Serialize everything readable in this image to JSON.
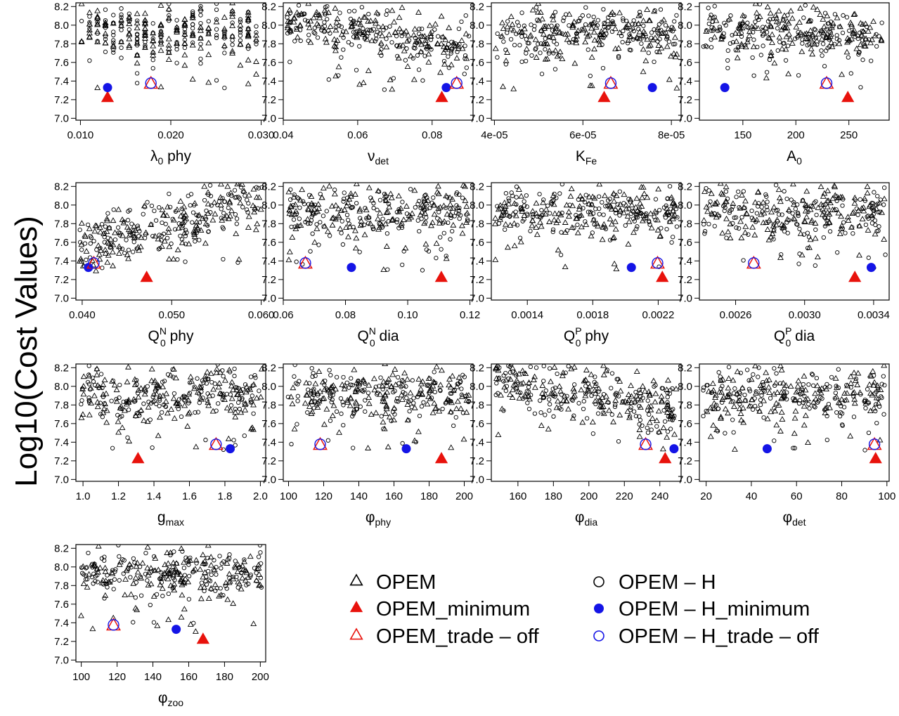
{
  "y_axis_label": "Log10(Cost Values)",
  "marker_colors": {
    "opem": "#000000",
    "minimum_red": "#e8120c",
    "minimum_blue": "#1414e6",
    "tradeoff_red": "#e8120c",
    "tradeoff_blue": "#1414e6"
  },
  "legend": [
    {
      "label": "OPEM",
      "marker": "triangle-open",
      "color": "#000000"
    },
    {
      "label": "OPEM_minimum",
      "marker": "triangle-filled",
      "color": "#e8120c"
    },
    {
      "label": "OPEM_trade – off",
      "marker": "triangle-open",
      "color": "#e8120c"
    },
    {
      "label": "OPEM – H",
      "marker": "circle-open",
      "color": "#000000"
    },
    {
      "label": "OPEM – H_minimum",
      "marker": "circle-filled",
      "color": "#1414e6"
    },
    {
      "label": "OPEM – H_trade – off",
      "marker": "circle-open",
      "color": "#1414e6"
    }
  ],
  "chart_data": [
    {
      "type": "scatter",
      "xlabel": {
        "main": "λ",
        "sub": "0",
        "sup": "",
        "tail": " phy"
      },
      "xlim": [
        0.0095,
        0.0305
      ],
      "xticks": [
        0.01,
        0.02,
        0.03
      ],
      "xtick_labels": [
        "0.010",
        "0.020",
        "0.030"
      ],
      "ylim": [
        6.98,
        8.24
      ],
      "yticks": [
        7.0,
        7.2,
        7.4,
        7.6,
        7.8,
        8.0,
        8.2
      ],
      "ytick_labels": [
        "7.0",
        "7.2",
        "7.4",
        "7.6",
        "7.8",
        "8.0",
        "8.2"
      ],
      "trend": "stripes",
      "special": {
        "opem_min": [
          0.013,
          7.22
        ],
        "opem_h_min": [
          0.013,
          7.33
        ],
        "tradeoff": [
          0.0178,
          7.37
        ]
      }
    },
    {
      "type": "scatter",
      "xlabel": {
        "main": "ν",
        "sub": "det",
        "sup": "",
        "tail": ""
      },
      "xlim": [
        0.04,
        0.091
      ],
      "xticks": [
        0.04,
        0.06,
        0.08
      ],
      "xtick_labels": [
        "0.04",
        "0.06",
        "0.08"
      ],
      "ylim": [
        6.98,
        8.24
      ],
      "yticks": [
        7.0,
        7.2,
        7.4,
        7.6,
        7.8,
        8.0,
        8.2
      ],
      "ytick_labels": [
        "7.0",
        "7.2",
        "7.4",
        "7.6",
        "7.8",
        "8.0",
        "8.2"
      ],
      "trend": "down",
      "special": {
        "opem_min": [
          0.0826,
          7.22
        ],
        "opem_h_min": [
          0.0838,
          7.33
        ],
        "tradeoff": [
          0.0866,
          7.37
        ]
      }
    },
    {
      "type": "scatter",
      "xlabel": {
        "main": "K",
        "sub": "Fe",
        "sup": "",
        "tail": ""
      },
      "xlim": [
        3.93e-05,
        8.22e-05
      ],
      "xticks": [
        4e-05,
        6e-05,
        8e-05
      ],
      "xtick_labels": [
        "4e-05",
        "6e-05",
        "8e-05"
      ],
      "ylim": [
        6.98,
        8.24
      ],
      "yticks": [
        7.0,
        7.2,
        7.4,
        7.6,
        7.8,
        8.0,
        8.2
      ],
      "ytick_labels": [
        "7.0",
        "7.2",
        "7.4",
        "7.6",
        "7.8",
        "8.0",
        "8.2"
      ],
      "trend": "flat",
      "special": {
        "opem_min": [
          6.48e-05,
          7.22
        ],
        "opem_h_min": [
          7.57e-05,
          7.33
        ],
        "tradeoff": [
          6.63e-05,
          7.37
        ]
      }
    },
    {
      "type": "scatter",
      "xlabel": {
        "main": "A",
        "sub": "0",
        "sup": "",
        "tail": ""
      },
      "xlim": [
        109,
        288
      ],
      "xticks": [
        150,
        200,
        250
      ],
      "xtick_labels": [
        "150",
        "200",
        "250"
      ],
      "ylim": [
        6.98,
        8.24
      ],
      "yticks": [
        7.0,
        7.2,
        7.4,
        7.6,
        7.8,
        8.0,
        8.2
      ],
      "ytick_labels": [
        "7.0",
        "7.2",
        "7.4",
        "7.6",
        "7.8",
        "8.0",
        "8.2"
      ],
      "trend": "flat",
      "special": {
        "opem_min": [
          249,
          7.22
        ],
        "opem_h_min": [
          133,
          7.33
        ],
        "tradeoff": [
          229,
          7.37
        ]
      }
    },
    {
      "type": "scatter",
      "xlabel": {
        "main": "Q",
        "sub": "0",
        "sup": "N",
        "tail": " phy"
      },
      "xlim": [
        0.0393,
        0.0605
      ],
      "xticks": [
        0.04,
        0.05,
        0.06
      ],
      "xtick_labels": [
        "0.040",
        "0.050",
        "0.060"
      ],
      "ylim": [
        6.98,
        8.24
      ],
      "yticks": [
        7.0,
        7.2,
        7.4,
        7.6,
        7.8,
        8.0,
        8.2
      ],
      "ytick_labels": [
        "7.0",
        "7.2",
        "7.4",
        "7.6",
        "7.8",
        "8.0",
        "8.2"
      ],
      "trend": "up",
      "special": {
        "opem_min": [
          0.0472,
          7.22
        ],
        "opem_h_min": [
          0.0407,
          7.33
        ],
        "tradeoff": [
          0.0413,
          7.37
        ]
      }
    },
    {
      "type": "scatter",
      "xlabel": {
        "main": "Q",
        "sub": "0",
        "sup": "N",
        "tail": " dia"
      },
      "xlim": [
        0.06,
        0.121
      ],
      "xticks": [
        0.06,
        0.08,
        0.1,
        0.12
      ],
      "xtick_labels": [
        "0.06",
        "0.08",
        "0.10",
        "0.12"
      ],
      "ylim": [
        6.98,
        8.24
      ],
      "yticks": [
        7.0,
        7.2,
        7.4,
        7.6,
        7.8,
        8.0,
        8.2
      ],
      "ytick_labels": [
        "7.0",
        "7.2",
        "7.4",
        "7.6",
        "7.8",
        "8.0",
        "8.2"
      ],
      "trend": "flat",
      "special": {
        "opem_min": [
          0.1108,
          7.22
        ],
        "opem_h_min": [
          0.0819,
          7.33
        ],
        "tradeoff": [
          0.0671,
          7.37
        ]
      }
    },
    {
      "type": "scatter",
      "xlabel": {
        "main": "Q",
        "sub": "0",
        "sup": "P",
        "tail": " phy"
      },
      "xlim": [
        0.00118,
        0.00234
      ],
      "xticks": [
        0.0014,
        0.0018,
        0.0022
      ],
      "xtick_labels": [
        "0.0014",
        "0.0018",
        "0.0022"
      ],
      "ylim": [
        6.98,
        8.24
      ],
      "yticks": [
        7.0,
        7.2,
        7.4,
        7.6,
        7.8,
        8.0,
        8.2
      ],
      "ytick_labels": [
        "7.0",
        "7.2",
        "7.4",
        "7.6",
        "7.8",
        "8.0",
        "8.2"
      ],
      "trend": "flat",
      "special": {
        "opem_min": [
          0.002225,
          7.22
        ],
        "opem_h_min": [
          0.002036,
          7.33
        ],
        "tradeoff": [
          0.002196,
          7.37
        ]
      }
    },
    {
      "type": "scatter",
      "xlabel": {
        "main": "Q",
        "sub": "0",
        "sup": "P",
        "tail": " dia"
      },
      "xlim": [
        0.00239,
        0.00349
      ],
      "xticks": [
        0.0026,
        0.003,
        0.0034
      ],
      "xtick_labels": [
        "0.0026",
        "0.0030",
        "0.0034"
      ],
      "ylim": [
        6.98,
        8.24
      ],
      "yticks": [
        7.0,
        7.2,
        7.4,
        7.6,
        7.8,
        8.0,
        8.2
      ],
      "ytick_labels": [
        "7.0",
        "7.2",
        "7.4",
        "7.6",
        "7.8",
        "8.0",
        "8.2"
      ],
      "trend": "flat",
      "special": {
        "opem_min": [
          0.003291,
          7.22
        ],
        "opem_h_min": [
          0.003386,
          7.33
        ],
        "tradeoff": [
          0.002705,
          7.37
        ]
      }
    },
    {
      "type": "scatter",
      "xlabel": {
        "main": "g",
        "sub": "max",
        "sup": "",
        "tail": ""
      },
      "xlim": [
        0.96,
        2.03
      ],
      "xticks": [
        1.0,
        1.2,
        1.4,
        1.6,
        1.8,
        2.0
      ],
      "xtick_labels": [
        "1.0",
        "1.2",
        "1.4",
        "1.6",
        "1.8",
        "2.0"
      ],
      "ylim": [
        6.98,
        8.24
      ],
      "yticks": [
        7.0,
        7.2,
        7.4,
        7.6,
        7.8,
        8.0,
        8.2
      ],
      "ytick_labels": [
        "7.0",
        "7.2",
        "7.4",
        "7.6",
        "7.8",
        "8.0",
        "8.2"
      ],
      "trend": "flat",
      "special": {
        "opem_min": [
          1.31,
          7.22
        ],
        "opem_h_min": [
          1.83,
          7.33
        ],
        "tradeoff": [
          1.75,
          7.37
        ]
      }
    },
    {
      "type": "scatter",
      "xlabel": {
        "main": "φ",
        "sub": "phy",
        "sup": "",
        "tail": ""
      },
      "xlim": [
        97,
        205
      ],
      "xticks": [
        100,
        120,
        140,
        160,
        180,
        200
      ],
      "xtick_labels": [
        "100",
        "120",
        "140",
        "160",
        "180",
        "200"
      ],
      "ylim": [
        6.98,
        8.24
      ],
      "yticks": [
        7.0,
        7.2,
        7.4,
        7.6,
        7.8,
        8.0,
        8.2
      ],
      "ytick_labels": [
        "7.0",
        "7.2",
        "7.4",
        "7.6",
        "7.8",
        "8.0",
        "8.2"
      ],
      "trend": "flat",
      "special": {
        "opem_min": [
          187,
          7.22
        ],
        "opem_h_min": [
          167,
          7.33
        ],
        "tradeoff": [
          118,
          7.37
        ]
      }
    },
    {
      "type": "scatter",
      "xlabel": {
        "main": "φ",
        "sub": "dia",
        "sup": "",
        "tail": ""
      },
      "xlim": [
        145,
        252
      ],
      "xticks": [
        160,
        180,
        200,
        220,
        240
      ],
      "xtick_labels": [
        "160",
        "180",
        "200",
        "220",
        "240"
      ],
      "ylim": [
        6.98,
        8.24
      ],
      "yticks": [
        7.0,
        7.2,
        7.4,
        7.6,
        7.8,
        8.0,
        8.2
      ],
      "ytick_labels": [
        "7.0",
        "7.2",
        "7.4",
        "7.6",
        "7.8",
        "8.0",
        "8.2"
      ],
      "trend": "down",
      "special": {
        "opem_min": [
          243,
          7.22
        ],
        "opem_h_min": [
          248,
          7.33
        ],
        "tradeoff": [
          232,
          7.37
        ]
      }
    },
    {
      "type": "scatter",
      "xlabel": {
        "main": "φ",
        "sub": "det",
        "sup": "",
        "tail": ""
      },
      "xlim": [
        17,
        101
      ],
      "xticks": [
        20,
        40,
        60,
        80,
        100
      ],
      "xtick_labels": [
        "20",
        "40",
        "60",
        "80",
        "100"
      ],
      "ylim": [
        6.98,
        8.24
      ],
      "yticks": [
        7.0,
        7.2,
        7.4,
        7.6,
        7.8,
        8.0,
        8.2
      ],
      "ytick_labels": [
        "7.0",
        "7.2",
        "7.4",
        "7.6",
        "7.8",
        "8.0",
        "8.2"
      ],
      "trend": "flat",
      "special": {
        "opem_min": [
          95,
          7.22
        ],
        "opem_h_min": [
          47,
          7.33
        ],
        "tradeoff": [
          94.5,
          7.37
        ]
      }
    },
    {
      "type": "scatter",
      "xlabel": {
        "main": "φ",
        "sub": "zoo",
        "sup": "",
        "tail": ""
      },
      "xlim": [
        97,
        203
      ],
      "xticks": [
        100,
        120,
        140,
        160,
        180,
        200
      ],
      "xtick_labels": [
        "100",
        "120",
        "140",
        "160",
        "180",
        "200"
      ],
      "ylim": [
        6.98,
        8.24
      ],
      "yticks": [
        7.0,
        7.2,
        7.4,
        7.6,
        7.8,
        8.0,
        8.2
      ],
      "ytick_labels": [
        "7.0",
        "7.2",
        "7.4",
        "7.6",
        "7.8",
        "8.0",
        "8.2"
      ],
      "trend": "flat",
      "special": {
        "opem_min": [
          168,
          7.22
        ],
        "opem_h_min": [
          153,
          7.33
        ],
        "tradeoff": [
          118,
          7.37
        ]
      }
    }
  ]
}
